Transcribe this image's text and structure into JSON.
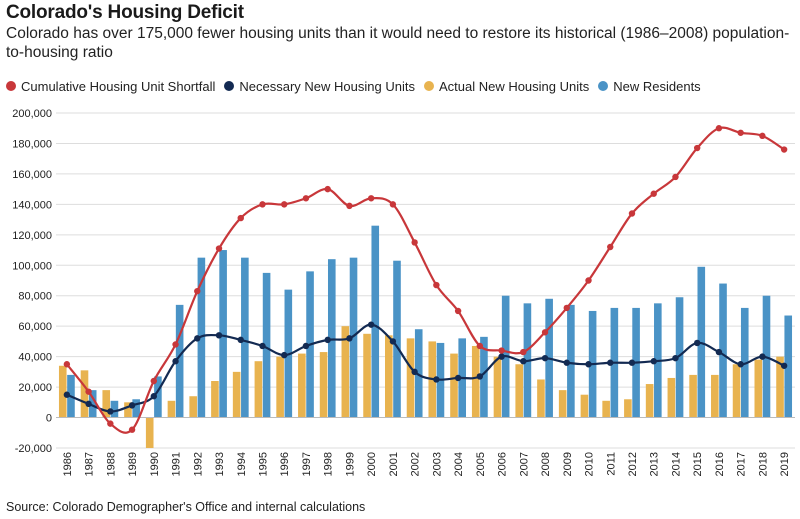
{
  "header": {
    "title": "Colorado's Housing Deficit",
    "subtitle": "Colorado has over 175,000 fewer housing units than it would need to restore its historical (1986–2008) population-to-housing ratio"
  },
  "legend": {
    "items": [
      {
        "label": "Cumulative Housing Unit Shortfall",
        "color": "#c8373a"
      },
      {
        "label": "Necessary New Housing Units",
        "color": "#132a52"
      },
      {
        "label": "Actual New Housing Units",
        "color": "#e8b34f"
      },
      {
        "label": "New Residents",
        "color": "#4a93c6"
      }
    ]
  },
  "footer": {
    "source": "Source: Colorado Demographer's Office and internal calculations"
  },
  "chart_data": {
    "type": "bar",
    "categories": [
      "1986",
      "1987",
      "1988",
      "1989",
      "1990",
      "1991",
      "1992",
      "1993",
      "1994",
      "1995",
      "1996",
      "1997",
      "1998",
      "1999",
      "2000",
      "2001",
      "2002",
      "2003",
      "2004",
      "2005",
      "2006",
      "2007",
      "2008",
      "2009",
      "2010",
      "2011",
      "2012",
      "2013",
      "2014",
      "2015",
      "2016",
      "2017",
      "2018",
      "2019"
    ],
    "ylim": [
      -20000,
      200000
    ],
    "yticks": [
      -20000,
      0,
      20000,
      40000,
      60000,
      80000,
      100000,
      120000,
      140000,
      160000,
      180000,
      200000
    ],
    "ytick_labels": [
      "-20,000",
      "0",
      "20,000",
      "40,000",
      "60,000",
      "80,000",
      "100,000",
      "120,000",
      "140,000",
      "160,000",
      "180,000",
      "200,000"
    ],
    "grid": true,
    "legend_position": "top-left",
    "series": [
      {
        "name": "Actual New Housing Units",
        "kind": "bar",
        "color": "#e8b34f",
        "values": [
          34000,
          31000,
          18000,
          10000,
          -20000,
          11000,
          14000,
          24000,
          30000,
          37000,
          40000,
          42000,
          43000,
          60000,
          55000,
          54000,
          52000,
          50000,
          42000,
          47000,
          40000,
          35000,
          25000,
          18000,
          15000,
          11000,
          12000,
          22000,
          26000,
          28000,
          28000,
          35000,
          38000,
          40000
        ]
      },
      {
        "name": "New Residents",
        "kind": "bar",
        "color": "#4a93c6",
        "values": [
          28000,
          18000,
          11000,
          12000,
          27000,
          74000,
          105000,
          110000,
          105000,
          95000,
          84000,
          96000,
          104000,
          105000,
          126000,
          103000,
          58000,
          49000,
          52000,
          53000,
          80000,
          75000,
          78000,
          74000,
          70000,
          72000,
          72000,
          75000,
          79000,
          99000,
          88000,
          72000,
          80000,
          67000
        ]
      },
      {
        "name": "Necessary New Housing Units",
        "kind": "line",
        "color": "#132a52",
        "values": [
          15000,
          9000,
          4000,
          8000,
          14000,
          37000,
          52000,
          54000,
          51000,
          47000,
          41000,
          47000,
          51000,
          52000,
          61000,
          50000,
          30000,
          25000,
          26000,
          27000,
          40000,
          37000,
          39000,
          36000,
          35000,
          36000,
          36000,
          37000,
          39000,
          49000,
          43000,
          35000,
          40000,
          34000
        ]
      },
      {
        "name": "Cumulative Housing Unit Shortfall",
        "kind": "line",
        "color": "#c8373a",
        "values": [
          35000,
          17000,
          -4000,
          -8000,
          24000,
          48000,
          83000,
          111000,
          131000,
          140000,
          140000,
          144000,
          150000,
          139000,
          144000,
          140000,
          115000,
          87000,
          70000,
          47000,
          44000,
          43000,
          56000,
          72000,
          90000,
          112000,
          134000,
          147000,
          158000,
          177000,
          190000,
          187000,
          185000,
          176000
        ]
      }
    ]
  }
}
